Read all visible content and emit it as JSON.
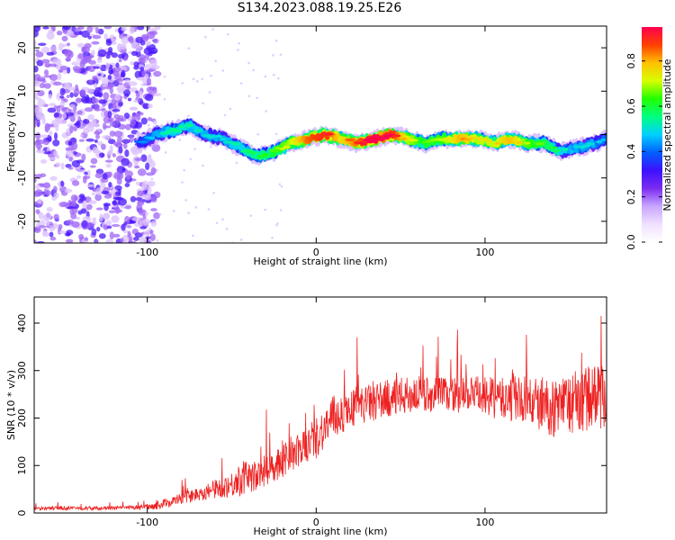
{
  "title": "S134.2023.088.19.25.E26",
  "colors": {
    "signal_line": "#ee2222",
    "frame": "#000000",
    "colormap": [
      "#ffffff",
      "#f0e0ff",
      "#c9a6ff",
      "#7a2cf0",
      "#3d10ff",
      "#0060ff",
      "#00d0ff",
      "#00ff80",
      "#22ff00",
      "#d8ff00",
      "#ffc000",
      "#ff4000",
      "#ff0050"
    ]
  },
  "chart_data": [
    {
      "type": "heatmap",
      "xlabel": "Height of straight line (km)",
      "ylabel": "Frequency (Hz)",
      "xlim": [
        -167,
        172
      ],
      "ylim": [
        -25,
        25
      ],
      "x_ticks": [
        -100,
        0,
        100
      ],
      "y_ticks": [
        -20,
        -10,
        0,
        10,
        20
      ],
      "colorbar": {
        "label": "Normalized spectral amplitude",
        "range": [
          0,
          0.95
        ],
        "ticks": [
          0.0,
          0.2,
          0.4,
          0.6,
          0.8
        ]
      },
      "ridge": {
        "x": [
          -105,
          -95,
          -85,
          -75,
          -65,
          -55,
          -45,
          -35,
          -25,
          -15,
          -5,
          5,
          15,
          25,
          35,
          45,
          55,
          65,
          75,
          85,
          95,
          105,
          115,
          125,
          135,
          145,
          155,
          165,
          172
        ],
        "frequency": [
          -2,
          0,
          1,
          2,
          0,
          -1,
          -3,
          -5,
          -4,
          -2,
          -1,
          0,
          -1,
          -2,
          -1,
          0,
          -1,
          -2,
          -1,
          -1,
          -1,
          -2,
          -1,
          -2,
          -2,
          -4,
          -3,
          -2,
          -1
        ],
        "amplitude": [
          0.35,
          0.45,
          0.5,
          0.5,
          0.45,
          0.45,
          0.5,
          0.55,
          0.6,
          0.7,
          0.85,
          0.9,
          0.75,
          0.85,
          0.95,
          0.9,
          0.7,
          0.6,
          0.65,
          0.8,
          0.7,
          0.7,
          0.8,
          0.65,
          0.6,
          0.5,
          0.45,
          0.45,
          0.4
        ]
      },
      "noise_region_x": [
        -167,
        -100
      ]
    },
    {
      "type": "line",
      "xlabel": "Height of straight line (km)",
      "ylabel": "SNR (10 * v/v)",
      "xlim": [
        -167,
        172
      ],
      "ylim": [
        0,
        455
      ],
      "x_ticks": [
        -100,
        0,
        100
      ],
      "y_ticks": [
        0,
        100,
        200,
        300,
        400
      ],
      "series": [
        {
          "x": [
            -167,
            -150,
            -130,
            -110,
            -95,
            -90,
            -80,
            -70,
            -60,
            -50,
            -45,
            -40,
            -35,
            -30,
            -25,
            -20,
            -15,
            -10,
            -5,
            0,
            5,
            10,
            15,
            20,
            30,
            40,
            50,
            60,
            70,
            80,
            90,
            100,
            110,
            120,
            130,
            140,
            150,
            160,
            172
          ],
          "values": [
            10,
            10,
            10,
            11,
            15,
            20,
            30,
            40,
            50,
            60,
            70,
            80,
            75,
            90,
            100,
            110,
            120,
            130,
            145,
            160,
            180,
            200,
            210,
            220,
            230,
            240,
            245,
            250,
            250,
            250,
            250,
            245,
            240,
            240,
            230,
            220,
            230,
            240,
            250
          ],
          "noise_amplitude": [
            8,
            8,
            8,
            8,
            15,
            20,
            25,
            30,
            40,
            55,
            70,
            75,
            60,
            70,
            70,
            70,
            70,
            75,
            80,
            90,
            90,
            95,
            90,
            80,
            80,
            80,
            80,
            80,
            75,
            75,
            80,
            85,
            90,
            100,
            110,
            120,
            130,
            140,
            140
          ]
        }
      ]
    }
  ]
}
